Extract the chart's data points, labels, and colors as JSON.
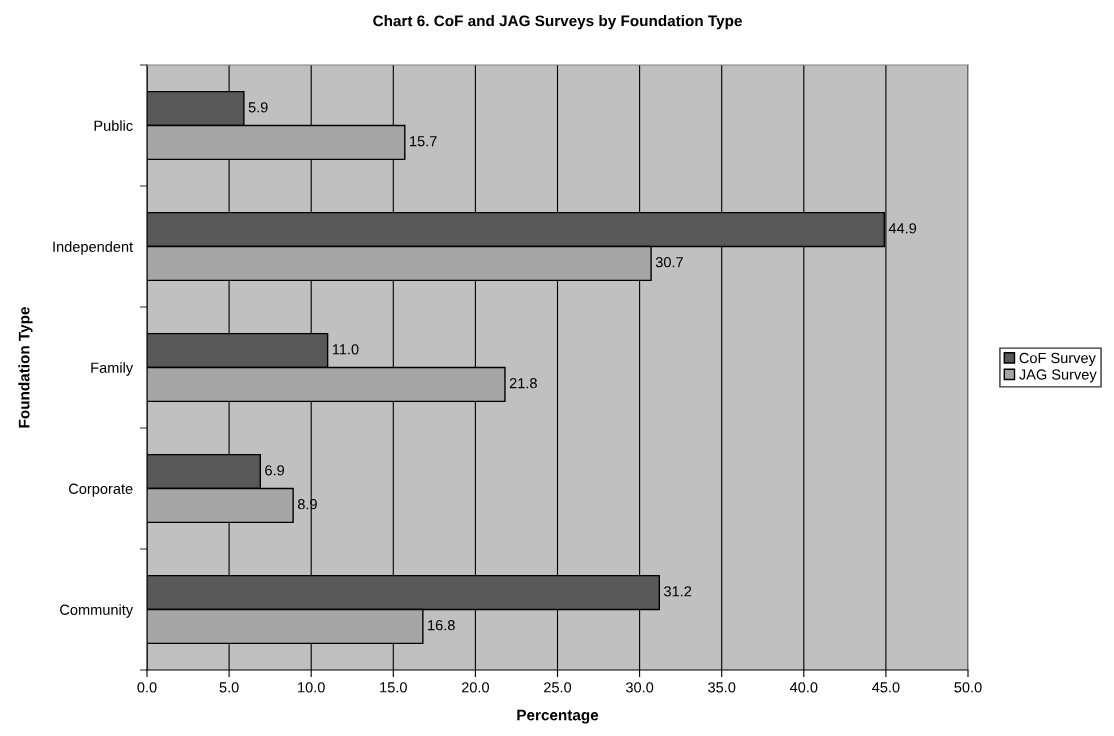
{
  "chart_data": {
    "type": "bar",
    "orientation": "horizontal",
    "title": "Chart 6. CoF and JAG Surveys by Foundation Type",
    "xlabel": "Percentage",
    "ylabel": "Foundation Type",
    "categories": [
      "Public",
      "Independent",
      "Family",
      "Corporate",
      "Community"
    ],
    "series": [
      {
        "name": "CoF Survey",
        "color": "#595959",
        "values": [
          5.9,
          44.9,
          11.0,
          6.9,
          31.2
        ],
        "value_labels": [
          "5.9",
          "44.9",
          "11.0",
          "6.9",
          "31.2"
        ]
      },
      {
        "name": "JAG Survey",
        "color": "#a6a6a6",
        "values": [
          15.7,
          30.7,
          21.8,
          8.9,
          16.8
        ],
        "value_labels": [
          "15.7",
          "30.7",
          "21.8",
          "8.9",
          "16.8"
        ]
      }
    ],
    "xlim": [
      0,
      50
    ],
    "xticks": [
      {
        "value": 0,
        "label": "0.0"
      },
      {
        "value": 5,
        "label": "5.0"
      },
      {
        "value": 10,
        "label": "10.0"
      },
      {
        "value": 15,
        "label": "15.0"
      },
      {
        "value": 20,
        "label": "20.0"
      },
      {
        "value": 25,
        "label": "25.0"
      },
      {
        "value": 30,
        "label": "30.0"
      },
      {
        "value": 35,
        "label": "35.0"
      },
      {
        "value": 40,
        "label": "40.0"
      },
      {
        "value": 45,
        "label": "45.0"
      },
      {
        "value": 50,
        "label": "50.0"
      }
    ],
    "grid": "x",
    "legend": "right"
  }
}
